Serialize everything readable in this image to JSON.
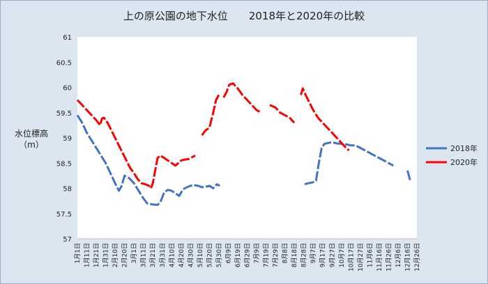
{
  "chart_data": {
    "type": "line",
    "title": "上の原公園の地下水位　　2018年と2020年の比較",
    "ylabel_line1": "水位標高",
    "ylabel_line2": "（m）",
    "ylim": [
      57,
      61
    ],
    "yticks": [
      57,
      57.5,
      58,
      58.5,
      59,
      59.5,
      60,
      60.5,
      61
    ],
    "ytick_labels": [
      "57",
      "57.5",
      "58",
      "58.5",
      "59",
      "59.5",
      "60",
      "60.5",
      "61"
    ],
    "x_categories": [
      "1月1日",
      "1月11日",
      "1月21日",
      "1月31日",
      "2月10日",
      "2月20日",
      "3月1日",
      "3月11日",
      "3月21日",
      "3月31日",
      "4月10日",
      "4月20日",
      "4月30日",
      "5月10日",
      "5月20日",
      "5月30日",
      "6月9日",
      "6月19日",
      "6月29日",
      "7月9日",
      "7月19日",
      "7月29日",
      "8月8日",
      "8月18日",
      "8月28日",
      "9月7日",
      "9月17日",
      "9月27日",
      "10月7日",
      "10月17日",
      "10月27日",
      "11月6日",
      "11月16日",
      "11月26日",
      "12月6日",
      "12月16日",
      "12月26日"
    ],
    "grid": false,
    "legend": "right",
    "series": [
      {
        "name": "2018年",
        "color": "#4472c4",
        "style": "dashed",
        "points": [
          [
            0,
            59.45
          ],
          [
            5,
            59.3
          ],
          [
            10,
            59.1
          ],
          [
            20,
            58.8
          ],
          [
            30,
            58.5
          ],
          [
            40,
            58.1
          ],
          [
            44,
            57.95
          ],
          [
            47,
            58.05
          ],
          [
            50,
            58.25
          ],
          [
            55,
            58.2
          ],
          [
            60,
            58.1
          ],
          [
            65,
            57.95
          ],
          [
            70,
            57.8
          ],
          [
            74,
            57.7
          ],
          [
            80,
            57.68
          ],
          [
            85,
            57.67
          ],
          [
            88,
            57.72
          ],
          [
            92,
            57.92
          ],
          [
            96,
            57.97
          ],
          [
            100,
            57.95
          ],
          [
            104,
            57.9
          ],
          [
            108,
            57.85
          ],
          [
            112,
            57.98
          ],
          [
            116,
            58.02
          ],
          [
            120,
            58.05
          ],
          [
            124,
            58.06
          ],
          [
            128,
            58.05
          ],
          [
            132,
            58.02
          ],
          [
            136,
            58.03
          ],
          [
            140,
            58.05
          ],
          [
            144,
            58.0
          ],
          [
            148,
            58.08
          ],
          [
            151,
            58.05
          ]
        ],
        "segments2": [
          [
            [
              241,
              58.08
            ],
            [
              245,
              58.1
            ],
            [
              250,
              58.12
            ],
            [
              253,
              58.15
            ],
            [
              256,
              58.5
            ],
            [
              259,
              58.8
            ],
            [
              262,
              58.88
            ],
            [
              266,
              58.9
            ],
            [
              270,
              58.91
            ],
            [
              275,
              58.89
            ],
            [
              280,
              58.88
            ],
            [
              285,
              58.87
            ],
            [
              290,
              58.85
            ],
            [
              295,
              58.85
            ],
            [
              300,
              58.8
            ],
            [
              305,
              58.75
            ],
            [
              310,
              58.7
            ],
            [
              315,
              58.65
            ],
            [
              320,
              58.6
            ],
            [
              325,
              58.55
            ],
            [
              330,
              58.5
            ],
            [
              335,
              58.45
            ]
          ],
          [
            [
              350,
              58.35
            ],
            [
              353,
              58.15
            ]
          ]
        ]
      },
      {
        "name": "2020年",
        "color": "#ff0000",
        "style": "dashed",
        "points": [
          [
            0,
            59.75
          ],
          [
            5,
            59.65
          ],
          [
            10,
            59.55
          ],
          [
            15,
            59.45
          ],
          [
            20,
            59.35
          ],
          [
            24,
            59.25
          ],
          [
            26,
            59.38
          ],
          [
            28,
            59.4
          ],
          [
            32,
            59.3
          ],
          [
            36,
            59.15
          ],
          [
            40,
            59.0
          ],
          [
            44,
            58.85
          ],
          [
            48,
            58.7
          ],
          [
            52,
            58.55
          ],
          [
            56,
            58.4
          ],
          [
            60,
            58.3
          ],
          [
            64,
            58.18
          ],
          [
            68,
            58.1
          ],
          [
            72,
            58.08
          ],
          [
            76,
            58.05
          ],
          [
            78,
            58.0
          ],
          [
            80,
            58.1
          ],
          [
            82,
            58.3
          ],
          [
            85,
            58.6
          ],
          [
            88,
            58.65
          ],
          [
            92,
            58.6
          ],
          [
            96,
            58.55
          ],
          [
            100,
            58.5
          ],
          [
            104,
            58.45
          ],
          [
            107,
            58.5
          ],
          [
            110,
            58.55
          ],
          [
            114,
            58.57
          ],
          [
            118,
            58.58
          ],
          [
            120,
            58.6
          ],
          [
            122,
            58.62
          ],
          [
            125,
            58.65
          ]
        ],
        "segments2": [
          [
            [
              132,
              59.05
            ],
            [
              136,
              59.15
            ],
            [
              140,
              59.2
            ],
            [
              144,
              59.5
            ],
            [
              147,
              59.75
            ],
            [
              150,
              59.85
            ]
          ],
          [
            [
              155,
              59.8
            ],
            [
              158,
              59.9
            ],
            [
              161,
              60.05
            ],
            [
              165,
              60.08
            ],
            [
              170,
              59.98
            ],
            [
              175,
              59.85
            ],
            [
              180,
              59.75
            ],
            [
              185,
              59.65
            ],
            [
              190,
              59.55
            ],
            [
              195,
              59.5
            ]
          ],
          [
            [
              204,
              59.65
            ],
            [
              210,
              59.6
            ],
            [
              215,
              59.5
            ],
            [
              220,
              59.45
            ],
            [
              225,
              59.4
            ],
            [
              230,
              59.3
            ]
          ],
          [
            [
              237,
              59.85
            ],
            [
              239,
              59.98
            ],
            [
              242,
              59.85
            ],
            [
              246,
              59.7
            ],
            [
              250,
              59.55
            ],
            [
              255,
              59.4
            ],
            [
              260,
              59.3
            ],
            [
              265,
              59.2
            ],
            [
              270,
              59.1
            ],
            [
              275,
              59.0
            ],
            [
              280,
              58.9
            ],
            [
              285,
              58.8
            ],
            [
              288,
              58.75
            ]
          ]
        ]
      }
    ]
  }
}
